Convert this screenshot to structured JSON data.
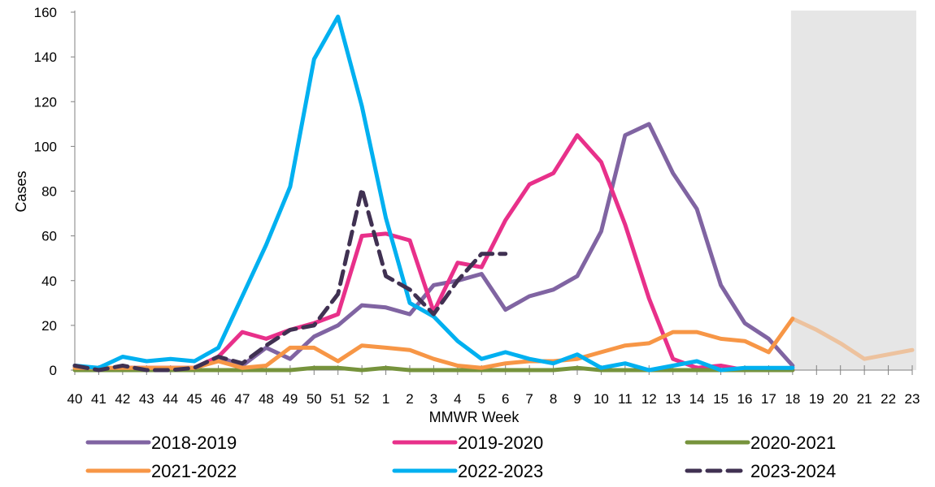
{
  "chart_data": {
    "type": "line",
    "title": "",
    "xlabel": "MMWR Week",
    "ylabel": "Cases",
    "ylim": [
      0,
      160
    ],
    "y_ticks": [
      0,
      20,
      40,
      60,
      80,
      100,
      120,
      140,
      160
    ],
    "categories": [
      "40",
      "41",
      "42",
      "43",
      "44",
      "45",
      "46",
      "47",
      "48",
      "49",
      "50",
      "51",
      "52",
      "1",
      "2",
      "3",
      "4",
      "5",
      "6",
      "7",
      "8",
      "9",
      "10",
      "11",
      "12",
      "13",
      "14",
      "15",
      "16",
      "17",
      "18",
      "19",
      "20",
      "21",
      "22",
      "23"
    ],
    "shaded_region": {
      "from": "18",
      "to": "23",
      "color": "#e6e6e6"
    },
    "grid": false,
    "legend_position": "bottom",
    "series": [
      {
        "name": "2018-2019",
        "color": "#8064a2",
        "dash": "solid",
        "values": [
          2,
          0,
          1,
          1,
          1,
          1,
          6,
          2,
          10,
          5,
          15,
          20,
          29,
          28,
          25,
          38,
          40,
          43,
          27,
          33,
          36,
          42,
          62,
          105,
          110,
          88,
          72,
          38,
          21,
          14,
          2,
          null,
          null,
          null,
          null,
          null
        ]
      },
      {
        "name": "2019-2020",
        "color": "#e8308a",
        "dash": "solid",
        "values": [
          1,
          0,
          1,
          1,
          1,
          1,
          6,
          17,
          14,
          18,
          21,
          25,
          60,
          61,
          58,
          26,
          48,
          46,
          67,
          83,
          88,
          105,
          93,
          65,
          32,
          5,
          1,
          2,
          0,
          0,
          0,
          null,
          null,
          null,
          null,
          null
        ]
      },
      {
        "name": "2020-2021",
        "color": "#76933c",
        "dash": "solid",
        "values": [
          0,
          0,
          0,
          0,
          0,
          0,
          0,
          0,
          0,
          0,
          1,
          1,
          0,
          1,
          0,
          0,
          0,
          0,
          0,
          0,
          0,
          1,
          0,
          0,
          0,
          0,
          0,
          0,
          0,
          0,
          0,
          null,
          null,
          null,
          null,
          null
        ]
      },
      {
        "name": "2021-2022",
        "color": "#f79646",
        "dash": "solid",
        "values": [
          1,
          1,
          1,
          1,
          1,
          1,
          4,
          1,
          2,
          10,
          10,
          4,
          11,
          10,
          9,
          5,
          2,
          1,
          3,
          4,
          4,
          5,
          8,
          11,
          12,
          17,
          17,
          14,
          13,
          8,
          23,
          18,
          12,
          5,
          7,
          9
        ]
      },
      {
        "name": "2022-2023",
        "color": "#00b0f0",
        "dash": "solid",
        "values": [
          2,
          1,
          6,
          4,
          5,
          4,
          10,
          33,
          56,
          82,
          139,
          158,
          118,
          68,
          30,
          24,
          13,
          5,
          8,
          5,
          3,
          7,
          1,
          3,
          0,
          2,
          4,
          0,
          1,
          1,
          1,
          null,
          null,
          null,
          null,
          null
        ]
      },
      {
        "name": "2023-2024",
        "color": "#403152",
        "dash": "dashed",
        "values": [
          2,
          0,
          2,
          0,
          0,
          1,
          6,
          3,
          11,
          18,
          20,
          34,
          81,
          42,
          36,
          25,
          40,
          52,
          52,
          null,
          null,
          null,
          null,
          null,
          null,
          null,
          null,
          null,
          null,
          null,
          null,
          null,
          null,
          null,
          null,
          null
        ]
      }
    ]
  }
}
